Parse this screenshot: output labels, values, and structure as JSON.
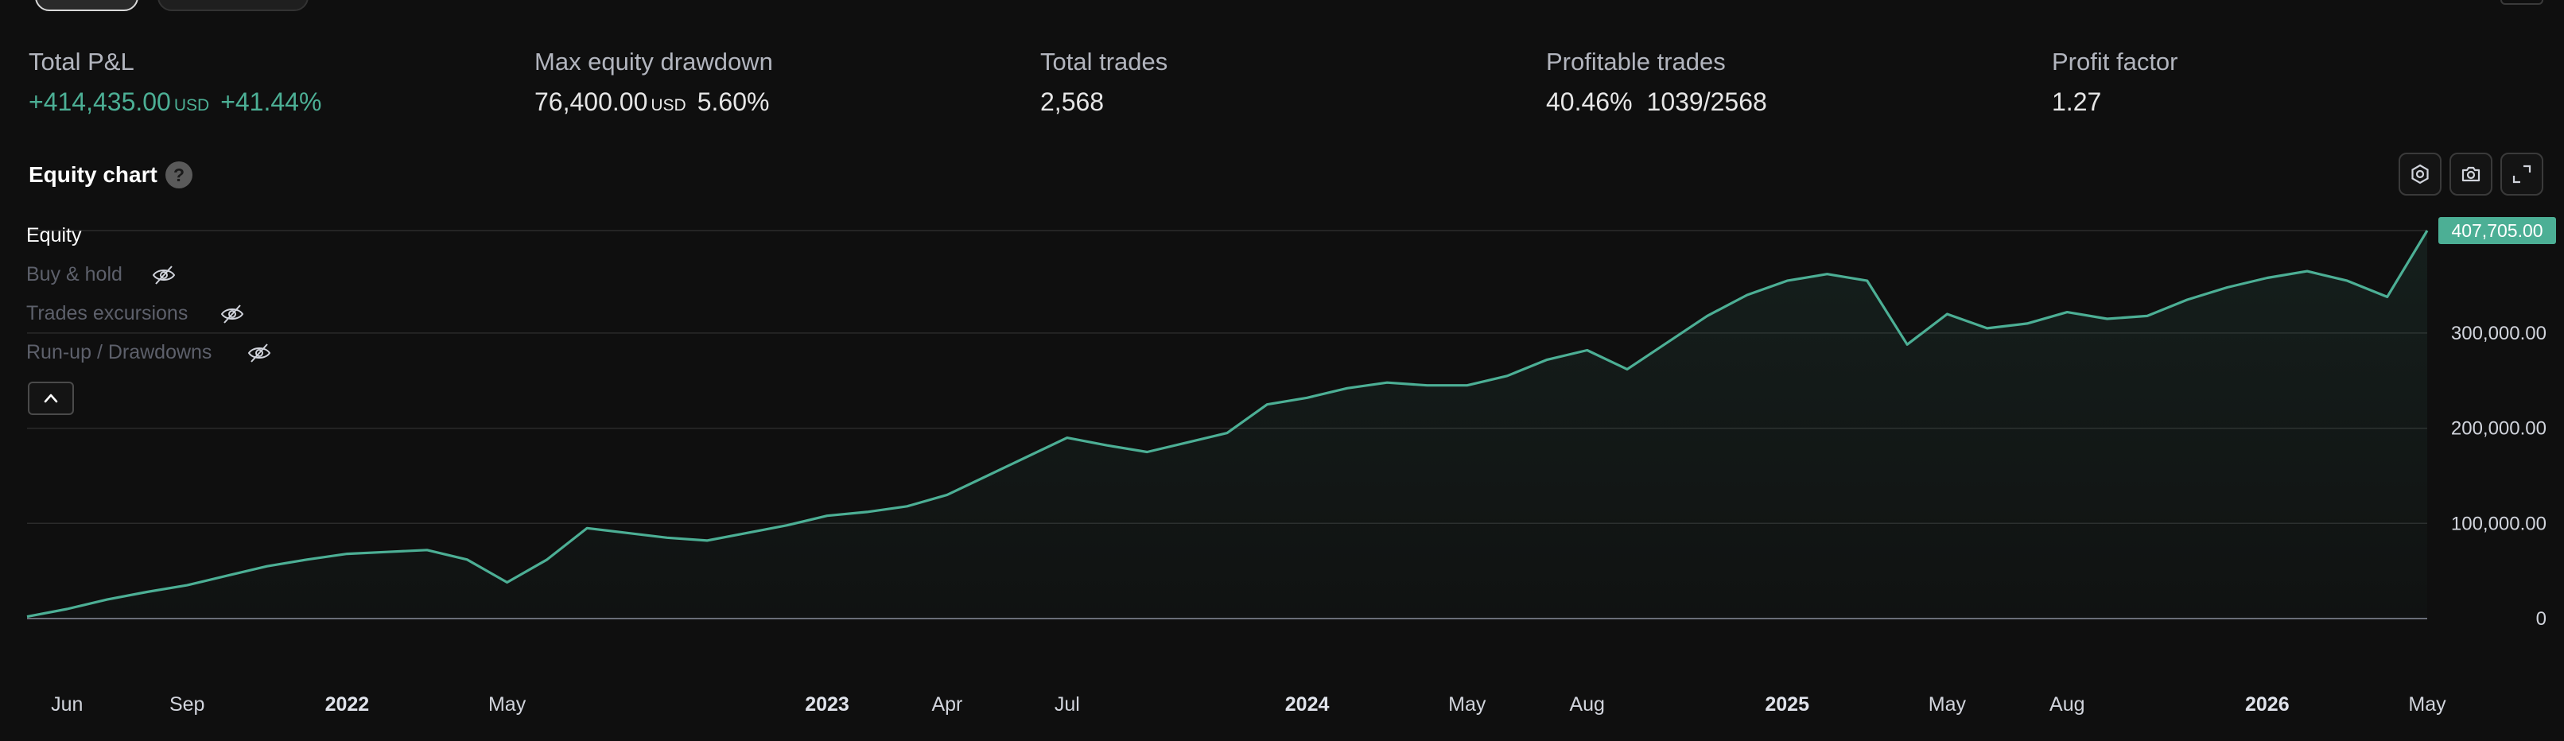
{
  "metrics": [
    {
      "label": "Total P&L",
      "value": "+414,435.00",
      "unit": "USD",
      "secondary": "+41.44%",
      "tone": "positive"
    },
    {
      "label": "Max equity drawdown",
      "value": "76,400.00",
      "unit": "USD",
      "secondary": "5.60%",
      "tone": "neutral"
    },
    {
      "label": "Total trades",
      "value": "2,568",
      "unit": "",
      "secondary": "",
      "tone": "neutral"
    },
    {
      "label": "Profitable trades",
      "value": "40.46%",
      "unit": "",
      "secondary": "1039/2568",
      "tone": "neutral"
    },
    {
      "label": "Profit factor",
      "value": "1.27",
      "unit": "",
      "secondary": "",
      "tone": "neutral"
    }
  ],
  "chart_header": {
    "title": "Equity chart",
    "help": "?"
  },
  "toolbar": {
    "icons": [
      "settings-icon",
      "camera-icon",
      "fullscreen-icon"
    ]
  },
  "legend": [
    {
      "label": "Equity",
      "active": true
    },
    {
      "label": "Buy & hold",
      "active": false
    },
    {
      "label": "Trades excursions",
      "active": false
    },
    {
      "label": "Run-up / Drawdowns",
      "active": false
    }
  ],
  "colors": {
    "equity": "#4caf95",
    "background": "#0f0f0f",
    "grid": "#2a2a2a"
  },
  "chart_data": {
    "type": "line",
    "title": "",
    "xlabel": "",
    "ylabel": "",
    "ylim": [
      0,
      407705
    ],
    "grid": true,
    "legend_position": "top-left",
    "last_value_label": "407,705.00",
    "y_ticks": [
      {
        "value": 0,
        "label": "0"
      },
      {
        "value": 100000,
        "label": "100,000.00"
      },
      {
        "value": 200000,
        "label": "200,000.00"
      },
      {
        "value": 300000,
        "label": "300,000.00"
      }
    ],
    "x_ticks": [
      {
        "x": "2021-06",
        "label": "Jun",
        "year": false
      },
      {
        "x": "2021-09",
        "label": "Sep",
        "year": false
      },
      {
        "x": "2022-01",
        "label": "2022",
        "year": true
      },
      {
        "x": "2022-05",
        "label": "May",
        "year": false
      },
      {
        "x": "2023-01",
        "label": "2023",
        "year": true
      },
      {
        "x": "2023-04",
        "label": "Apr",
        "year": false
      },
      {
        "x": "2023-07",
        "label": "Jul",
        "year": false
      },
      {
        "x": "2024-01",
        "label": "2024",
        "year": true
      },
      {
        "x": "2024-05",
        "label": "May",
        "year": false
      },
      {
        "x": "2024-08",
        "label": "Aug",
        "year": false
      },
      {
        "x": "2025-01",
        "label": "2025",
        "year": true
      },
      {
        "x": "2025-05",
        "label": "May",
        "year": false
      },
      {
        "x": "2025-08",
        "label": "Aug",
        "year": false
      },
      {
        "x": "2026-01",
        "label": "2026",
        "year": true
      },
      {
        "x": "2026-05",
        "label": "May",
        "year": false
      }
    ],
    "series": [
      {
        "name": "Equity",
        "x": [
          "2021-05",
          "2021-06",
          "2021-07",
          "2021-08",
          "2021-09",
          "2021-10",
          "2021-11",
          "2021-12",
          "2022-01",
          "2022-02",
          "2022-03",
          "2022-04",
          "2022-05",
          "2022-06",
          "2022-07",
          "2022-08",
          "2022-09",
          "2022-10",
          "2022-11",
          "2022-12",
          "2023-01",
          "2023-02",
          "2023-03",
          "2023-04",
          "2023-05",
          "2023-06",
          "2023-07",
          "2023-08",
          "2023-09",
          "2023-10",
          "2023-11",
          "2023-12",
          "2024-01",
          "2024-02",
          "2024-03",
          "2024-04",
          "2024-05",
          "2024-06",
          "2024-07",
          "2024-08",
          "2024-09",
          "2024-10",
          "2024-11",
          "2024-12",
          "2025-01",
          "2025-02",
          "2025-03",
          "2025-04",
          "2025-05",
          "2025-06",
          "2025-07",
          "2025-08",
          "2025-09",
          "2025-10",
          "2025-11",
          "2025-12",
          "2026-01",
          "2026-02",
          "2026-03",
          "2026-04",
          "2026-05"
        ],
        "values": [
          2000,
          10000,
          20000,
          28000,
          35000,
          45000,
          55000,
          62000,
          68000,
          70000,
          72000,
          62000,
          38000,
          62000,
          95000,
          90000,
          85000,
          82000,
          90000,
          98000,
          108000,
          112000,
          118000,
          130000,
          150000,
          170000,
          190000,
          182000,
          175000,
          185000,
          195000,
          225000,
          232000,
          242000,
          248000,
          245000,
          245000,
          255000,
          272000,
          282000,
          262000,
          290000,
          318000,
          340000,
          355000,
          362000,
          355000,
          288000,
          320000,
          305000,
          310000,
          322000,
          315000,
          318000,
          335000,
          348000,
          358000,
          365000,
          355000,
          338000,
          407705
        ]
      }
    ]
  }
}
